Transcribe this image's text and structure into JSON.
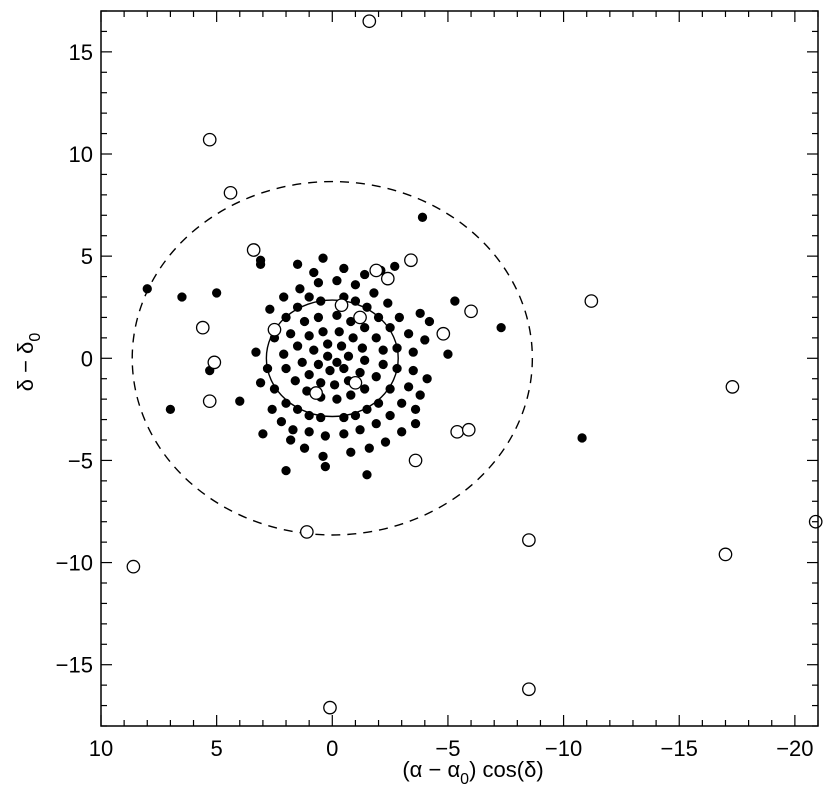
{
  "chart_data": {
    "type": "scatter",
    "title": "",
    "xlabel": "(α − α0)  cos(δ)",
    "ylabel": "δ − δ0",
    "xlabel_parts": {
      "pre": "(α − α",
      "sub": "0",
      "post": ")  cos(δ)"
    },
    "ylabel_parts": {
      "pre": "δ − δ",
      "sub": "0"
    },
    "xlim": [
      10,
      -21
    ],
    "ylim": [
      -18,
      17
    ],
    "x_reversed": true,
    "grid": false,
    "x_ticks": [
      10,
      5,
      0,
      -5,
      -10,
      -15,
      -20
    ],
    "x_tick_labels": [
      "10",
      "5",
      "0",
      "−5",
      "−10",
      "−15",
      "−20"
    ],
    "y_ticks": [
      15,
      10,
      5,
      0,
      -5,
      -10,
      -15
    ],
    "y_tick_labels": [
      "15",
      "10",
      "5",
      "0",
      "−5",
      "−10",
      "−15"
    ],
    "circles": [
      {
        "name": "",
        "center": [
          0,
          0
        ],
        "radius": 2.85,
        "style": "solid"
      },
      {
        "name": "",
        "center": [
          0,
          0
        ],
        "radius": 8.65,
        "style": "dashed"
      }
    ],
    "series": [
      {
        "marker": "filled",
        "points": [
          [
            8,
            3.4
          ],
          [
            6.5,
            3
          ],
          [
            5,
            3.2
          ],
          [
            7,
            -2.5
          ],
          [
            5.3,
            -0.6
          ],
          [
            3.1,
            4.8
          ],
          [
            3.1,
            4.6
          ],
          [
            -3.9,
            6.9
          ],
          [
            -5.3,
            2.8
          ],
          [
            -5,
            0.2
          ],
          [
            -7.3,
            1.5
          ],
          [
            -10.8,
            -3.9
          ],
          [
            0.4,
            4.9
          ],
          [
            -1.5,
            -5.7
          ],
          [
            0.3,
            -5.3
          ],
          [
            2,
            -5.5
          ],
          [
            4,
            -2.1
          ],
          [
            2.8,
            -0.5
          ],
          [
            2.5,
            1
          ],
          [
            2.0,
            2.0
          ],
          [
            1.5,
            2.5
          ],
          [
            1.0,
            3.0
          ],
          [
            0.5,
            2.8
          ],
          [
            -0.5,
            3.0
          ],
          [
            -1.0,
            2.8
          ],
          [
            -1.5,
            2.5
          ],
          [
            -2.0,
            2.0
          ],
          [
            -2.5,
            1.5
          ],
          [
            -2.8,
            0.5
          ],
          [
            -2.8,
            -0.5
          ],
          [
            -2.5,
            -1.5
          ],
          [
            -2.0,
            -2.2
          ],
          [
            -1.5,
            -2.5
          ],
          [
            -1.0,
            -2.8
          ],
          [
            -0.5,
            -2.9
          ],
          [
            0.5,
            -2.9
          ],
          [
            1.0,
            -2.8
          ],
          [
            1.5,
            -2.5
          ],
          [
            2.0,
            -2.2
          ],
          [
            2.5,
            -1.5
          ],
          [
            1.8,
            1.2
          ],
          [
            1.2,
            1.8
          ],
          [
            0.6,
            2.0
          ],
          [
            -0.2,
            2.1
          ],
          [
            -0.8,
            1.8
          ],
          [
            -1.4,
            1.5
          ],
          [
            -1.9,
            1.0
          ],
          [
            -2.2,
            0.4
          ],
          [
            -2.2,
            -0.3
          ],
          [
            -1.9,
            -0.9
          ],
          [
            -1.4,
            -1.5
          ],
          [
            -0.8,
            -1.8
          ],
          [
            -0.2,
            -2.0
          ],
          [
            0.5,
            -1.9
          ],
          [
            1.1,
            -1.6
          ],
          [
            1.6,
            -1.1
          ],
          [
            2.0,
            -0.5
          ],
          [
            2.1,
            0.2
          ],
          [
            1.5,
            0.6
          ],
          [
            1.0,
            1.1
          ],
          [
            0.4,
            1.3
          ],
          [
            -0.3,
            1.3
          ],
          [
            -0.9,
            1.0
          ],
          [
            -1.3,
            0.5
          ],
          [
            -1.4,
            -0.1
          ],
          [
            -1.2,
            -0.7
          ],
          [
            -0.7,
            -1.1
          ],
          [
            -0.1,
            -1.3
          ],
          [
            0.5,
            -1.2
          ],
          [
            1.0,
            -0.8
          ],
          [
            1.3,
            -0.2
          ],
          [
            0.8,
            0.4
          ],
          [
            0.2,
            0.7
          ],
          [
            -0.4,
            0.6
          ],
          [
            -0.7,
            0.1
          ],
          [
            -0.5,
            -0.5
          ],
          [
            0.1,
            -0.6
          ],
          [
            0.6,
            -0.3
          ],
          [
            0.2,
            0.1
          ],
          [
            -0.2,
            -0.2
          ],
          [
            3.3,
            0.3
          ],
          [
            3.1,
            -1.2
          ],
          [
            2.6,
            -2.5
          ],
          [
            2.2,
            -3.1
          ],
          [
            1.7,
            -3.5
          ],
          [
            1.0,
            -3.6
          ],
          [
            0.3,
            -3.8
          ],
          [
            -0.5,
            -3.7
          ],
          [
            -1.2,
            -3.5
          ],
          [
            -1.9,
            -3.2
          ],
          [
            -2.5,
            -2.8
          ],
          [
            -3.0,
            -2.2
          ],
          [
            -3.3,
            -1.4
          ],
          [
            -3.5,
            -0.6
          ],
          [
            -3.5,
            0.3
          ],
          [
            -3.3,
            1.2
          ],
          [
            -2.9,
            2.0
          ],
          [
            -2.4,
            2.7
          ],
          [
            -1.8,
            3.2
          ],
          [
            -1.0,
            3.6
          ],
          [
            -0.2,
            3.8
          ],
          [
            0.6,
            3.7
          ],
          [
            1.4,
            3.4
          ],
          [
            2.1,
            3.0
          ],
          [
            2.7,
            2.4
          ],
          [
            -3.8,
            -1.8
          ],
          [
            -3.6,
            -3.2
          ],
          [
            -3.0,
            -3.6
          ],
          [
            -2.3,
            -4.1
          ],
          [
            -1.6,
            -4.4
          ],
          [
            -0.8,
            -4.6
          ],
          [
            0.4,
            -4.8
          ],
          [
            1.2,
            -4.4
          ],
          [
            1.8,
            -4.0
          ],
          [
            3.0,
            -3.7
          ],
          [
            -2.7,
            4.5
          ],
          [
            -2.1,
            4.3
          ],
          [
            -1.4,
            4.1
          ],
          [
            -0.5,
            4.4
          ],
          [
            0.8,
            4.2
          ],
          [
            1.5,
            4.6
          ],
          [
            -4.1,
            -1.0
          ],
          [
            -4.0,
            0.9
          ],
          [
            -3.8,
            2.2
          ],
          [
            -4.2,
            1.8
          ],
          [
            -3.6,
            -2.5
          ]
        ]
      },
      {
        "marker": "open",
        "points": [
          [
            -1.6,
            16.5
          ],
          [
            5.3,
            10.7
          ],
          [
            4.4,
            8.1
          ],
          [
            3.4,
            5.3
          ],
          [
            2.5,
            1.4
          ],
          [
            5.6,
            1.5
          ],
          [
            5.1,
            -0.2
          ],
          [
            5.3,
            -2.1
          ],
          [
            -1.9,
            4.3
          ],
          [
            -2.4,
            3.9
          ],
          [
            -3.4,
            4.8
          ],
          [
            -0.4,
            2.6
          ],
          [
            -1.2,
            2
          ],
          [
            -4.8,
            1.2
          ],
          [
            -6,
            2.3
          ],
          [
            -11.2,
            2.8
          ],
          [
            -17.3,
            -1.4
          ],
          [
            -1.0,
            -1.2
          ],
          [
            0.7,
            -1.7
          ],
          [
            -5.4,
            -3.6
          ],
          [
            -5.9,
            -3.5
          ],
          [
            -3.6,
            -5
          ],
          [
            1.1,
            -8.5
          ],
          [
            -8.5,
            -8.9
          ],
          [
            -17,
            -9.6
          ],
          [
            -20.9,
            -8
          ],
          [
            8.6,
            -10.2
          ],
          [
            0.1,
            -17.1
          ],
          [
            -8.5,
            -16.2
          ]
        ]
      }
    ]
  }
}
